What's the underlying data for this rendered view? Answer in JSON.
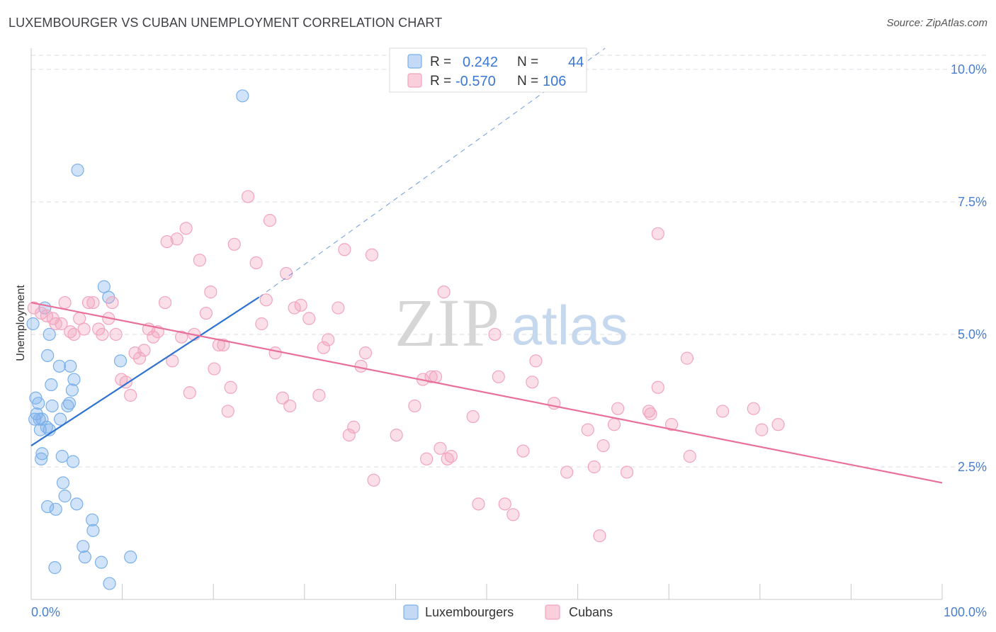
{
  "header": {
    "title": "LUXEMBOURGER VS CUBAN UNEMPLOYMENT CORRELATION CHART",
    "source": "Source: ZipAtlas.com"
  },
  "watermark": {
    "zip": "ZIP",
    "atlas": "atlas"
  },
  "colors": {
    "blue": "#7ab0ea",
    "blue_line": "#2f72d0",
    "pink": "#f2a4bd",
    "pink_line": "#e9709a",
    "grid": "#dcdce6",
    "tick_text": "#4a7fd0"
  },
  "chart_data": {
    "type": "scatter",
    "xlabel": "",
    "ylabel": "Unemployment",
    "xlim": [
      0,
      100
    ],
    "ylim": [
      0,
      10.4
    ],
    "x_tick_labels": [
      "0.0%",
      "100.0%"
    ],
    "y_ticks": [
      {
        "value": 2.5,
        "label": "2.5%"
      },
      {
        "value": 5.0,
        "label": "5.0%"
      },
      {
        "value": 7.5,
        "label": "7.5%"
      },
      {
        "value": 10.0,
        "label": "10.0%"
      }
    ],
    "grid": true,
    "legend": {
      "placement": "top-center",
      "rows": [
        {
          "r_label": "R =",
          "r_value": "0.242",
          "n_label": "N =",
          "n_value": "44"
        },
        {
          "r_label": "R =",
          "r_value": "-0.570",
          "n_label": "N =",
          "n_value": "106"
        }
      ]
    },
    "series": [
      {
        "name": "Luxembourgers",
        "color": "#7ab0ea",
        "trend": {
          "x": [
            0,
            25
          ],
          "y": [
            2.9,
            5.7
          ],
          "dashed_extension_to": [
            63,
            10.4
          ]
        },
        "points": [
          [
            0.2,
            5.2
          ],
          [
            1.5,
            5.5
          ],
          [
            2.0,
            5.0
          ],
          [
            1.8,
            4.6
          ],
          [
            0.5,
            3.8
          ],
          [
            0.8,
            3.7
          ],
          [
            0.6,
            3.5
          ],
          [
            0.4,
            3.4
          ],
          [
            1.2,
            3.4
          ],
          [
            2.3,
            3.65
          ],
          [
            3.2,
            3.4
          ],
          [
            4.2,
            3.7
          ],
          [
            4.0,
            3.65
          ],
          [
            4.5,
            3.95
          ],
          [
            4.7,
            4.15
          ],
          [
            2.2,
            4.05
          ],
          [
            3.1,
            4.4
          ],
          [
            4.3,
            4.4
          ],
          [
            1.7,
            3.25
          ],
          [
            2.0,
            3.2
          ],
          [
            1.0,
            3.2
          ],
          [
            1.2,
            2.75
          ],
          [
            1.1,
            2.65
          ],
          [
            3.4,
            2.7
          ],
          [
            4.6,
            2.6
          ],
          [
            3.5,
            2.2
          ],
          [
            3.7,
            1.95
          ],
          [
            5.0,
            1.8
          ],
          [
            1.8,
            1.75
          ],
          [
            2.7,
            1.7
          ],
          [
            6.7,
            1.5
          ],
          [
            6.8,
            1.3
          ],
          [
            5.7,
            1.0
          ],
          [
            5.9,
            0.8
          ],
          [
            7.7,
            0.7
          ],
          [
            10.9,
            0.8
          ],
          [
            2.6,
            0.6
          ],
          [
            8.6,
            0.3
          ],
          [
            8.0,
            5.9
          ],
          [
            8.5,
            5.7
          ],
          [
            9.8,
            4.5
          ],
          [
            5.1,
            8.1
          ],
          [
            23.2,
            9.5
          ],
          [
            0.9,
            3.4
          ]
        ]
      },
      {
        "name": "Cubans",
        "color": "#f2a4bd",
        "trend": {
          "x": [
            0,
            100
          ],
          "y": [
            5.6,
            2.2
          ]
        },
        "points": [
          [
            0.3,
            5.5
          ],
          [
            1.1,
            5.4
          ],
          [
            1.7,
            5.35
          ],
          [
            2.4,
            5.3
          ],
          [
            2.7,
            5.2
          ],
          [
            3.3,
            5.2
          ],
          [
            3.7,
            5.6
          ],
          [
            4.3,
            5.05
          ],
          [
            4.7,
            5.0
          ],
          [
            5.3,
            5.3
          ],
          [
            5.8,
            5.1
          ],
          [
            6.3,
            5.6
          ],
          [
            6.8,
            5.6
          ],
          [
            7.4,
            5.1
          ],
          [
            7.8,
            5.0
          ],
          [
            8.5,
            5.3
          ],
          [
            8.9,
            5.6
          ],
          [
            9.3,
            5.0
          ],
          [
            9.9,
            4.15
          ],
          [
            10.4,
            4.1
          ],
          [
            10.9,
            3.85
          ],
          [
            11.4,
            4.65
          ],
          [
            11.9,
            4.55
          ],
          [
            12.4,
            4.7
          ],
          [
            12.9,
            5.1
          ],
          [
            13.4,
            4.95
          ],
          [
            13.9,
            5.05
          ],
          [
            14.7,
            5.6
          ],
          [
            14.9,
            6.75
          ],
          [
            15.5,
            4.5
          ],
          [
            16.0,
            6.8
          ],
          [
            16.5,
            4.95
          ],
          [
            17.0,
            7.0
          ],
          [
            17.4,
            3.9
          ],
          [
            17.9,
            5.0
          ],
          [
            18.5,
            6.4
          ],
          [
            19.2,
            5.4
          ],
          [
            19.7,
            5.8
          ],
          [
            20.1,
            4.35
          ],
          [
            20.6,
            4.8
          ],
          [
            21.1,
            4.8
          ],
          [
            21.6,
            3.55
          ],
          [
            21.9,
            4.0
          ],
          [
            22.3,
            6.7
          ],
          [
            23.8,
            7.6
          ],
          [
            24.7,
            6.35
          ],
          [
            25.3,
            5.2
          ],
          [
            25.8,
            5.65
          ],
          [
            26.2,
            7.15
          ],
          [
            26.8,
            4.65
          ],
          [
            27.6,
            3.8
          ],
          [
            28.0,
            6.15
          ],
          [
            28.4,
            3.65
          ],
          [
            28.9,
            5.5
          ],
          [
            29.6,
            5.55
          ],
          [
            30.5,
            5.3
          ],
          [
            31.6,
            3.85
          ],
          [
            32.1,
            4.75
          ],
          [
            32.6,
            4.9
          ],
          [
            33.7,
            5.5
          ],
          [
            34.4,
            6.6
          ],
          [
            34.9,
            3.1
          ],
          [
            35.4,
            3.25
          ],
          [
            36.2,
            4.4
          ],
          [
            36.7,
            4.65
          ],
          [
            37.4,
            6.5
          ],
          [
            37.6,
            2.25
          ],
          [
            40.1,
            3.1
          ],
          [
            42.1,
            3.65
          ],
          [
            43.0,
            4.15
          ],
          [
            43.4,
            2.65
          ],
          [
            43.9,
            4.2
          ],
          [
            44.4,
            4.2
          ],
          [
            44.9,
            2.85
          ],
          [
            45.3,
            5.8
          ],
          [
            45.7,
            2.65
          ],
          [
            46.1,
            2.7
          ],
          [
            48.5,
            3.45
          ],
          [
            49.1,
            1.8
          ],
          [
            50.9,
            5.0
          ],
          [
            51.3,
            4.2
          ],
          [
            52.0,
            1.8
          ],
          [
            52.9,
            1.6
          ],
          [
            54.0,
            2.8
          ],
          [
            55.0,
            4.1
          ],
          [
            55.4,
            4.5
          ],
          [
            57.4,
            3.7
          ],
          [
            58.8,
            2.4
          ],
          [
            61.1,
            3.2
          ],
          [
            61.8,
            2.5
          ],
          [
            62.8,
            2.9
          ],
          [
            62.4,
            1.2
          ],
          [
            64.0,
            3.3
          ],
          [
            64.4,
            3.6
          ],
          [
            65.4,
            2.4
          ],
          [
            67.8,
            3.55
          ],
          [
            68.8,
            4.0
          ],
          [
            68.8,
            6.9
          ],
          [
            70.3,
            3.3
          ],
          [
            72.0,
            4.55
          ],
          [
            72.3,
            2.7
          ],
          [
            75.9,
            3.55
          ],
          [
            79.3,
            3.6
          ],
          [
            80.2,
            3.2
          ],
          [
            82.0,
            3.3
          ],
          [
            68.0,
            3.5
          ]
        ]
      }
    ]
  },
  "bottom_legend": [
    {
      "label": "Luxembourgers",
      "color": "#7ab0ea"
    },
    {
      "label": "Cubans",
      "color": "#f2a4bd"
    }
  ]
}
